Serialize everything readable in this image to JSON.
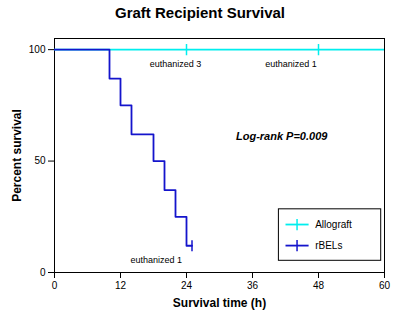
{
  "chart_data": {
    "type": "line",
    "title": "Graft Recipient Survival",
    "xlabel": "Survival time (h)",
    "ylabel": "Percent survival",
    "xlim": [
      0,
      60
    ],
    "ylim": [
      0,
      105
    ],
    "xticks": [
      0,
      12,
      24,
      36,
      48,
      60
    ],
    "yticks": [
      0,
      50,
      100
    ],
    "grid": false,
    "legend": "lower right",
    "series": [
      {
        "name": "Allograft",
        "color": "#00EEEE",
        "x": [
          0,
          60
        ],
        "values": [
          100,
          100
        ],
        "censor_x": [
          24,
          48
        ],
        "censor_values": [
          100,
          100
        ]
      },
      {
        "name": "rBELs",
        "color": "#1414CC",
        "x": [
          0,
          10,
          10,
          12,
          12,
          14,
          14,
          18,
          18,
          20,
          20,
          22,
          22,
          24,
          24,
          25
        ],
        "values": [
          100,
          100,
          87,
          87,
          75,
          75,
          62,
          62,
          50,
          50,
          37,
          37,
          25,
          25,
          12,
          12
        ],
        "censor_x": [
          25
        ],
        "censor_values": [
          12
        ]
      }
    ],
    "annotations": [
      {
        "text": "euthanized 3",
        "x": 22,
        "y": 96
      },
      {
        "text": "euthanized 1",
        "x": 43,
        "y": 96
      },
      {
        "text": "euthanized 1",
        "x": 18.5,
        "y": 8
      },
      {
        "text": "Log-rank P=0.009"
      }
    ]
  }
}
